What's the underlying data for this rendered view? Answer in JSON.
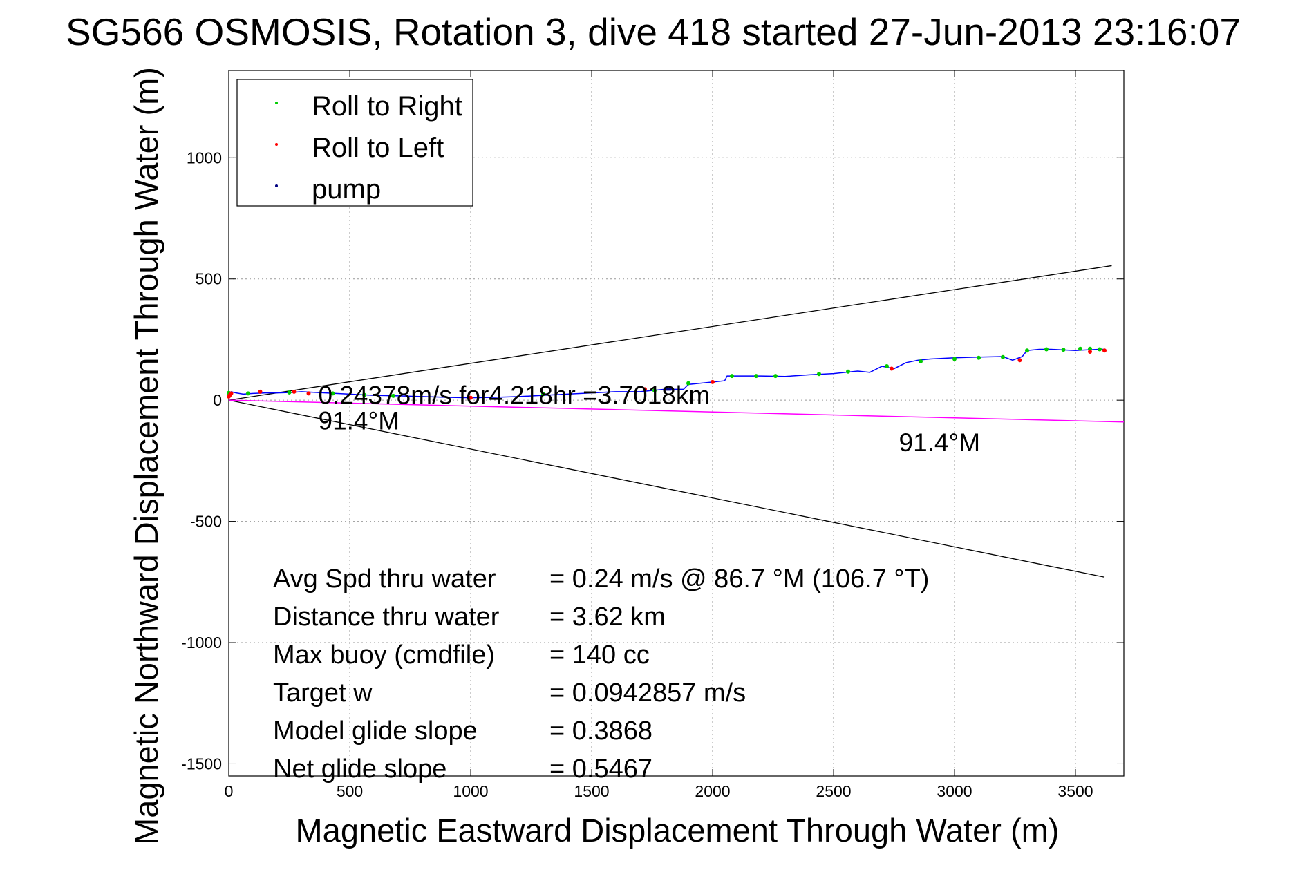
{
  "chart_data": {
    "type": "scatter",
    "title": "SG566 OSMOSIS, Rotation 3, dive 418 started 27-Jun-2013 23:16:07",
    "xlabel": "Magnetic Eastward Displacement Through Water (m)",
    "ylabel": "Magnetic Northward Displacement Through Water (m)",
    "xlim": [
      0,
      3700
    ],
    "ylim": [
      -1550,
      1360
    ],
    "xticks": [
      0,
      500,
      1000,
      1500,
      2000,
      2500,
      3000,
      3500
    ],
    "yticks": [
      -1500,
      -1000,
      -500,
      0,
      500,
      1000
    ],
    "grid": true,
    "legend": {
      "placement": "top-left",
      "entries": [
        "Roll to Right",
        "Roll to Left",
        "pump"
      ]
    },
    "colors": {
      "track": "#0000ff",
      "roll_right": "#00cc00",
      "roll_left": "#ff0000",
      "pump": "#000080",
      "heading": "#ff00ff",
      "cone": "#000000"
    },
    "series": [
      {
        "name": "track",
        "x": [
          0,
          10,
          30,
          60,
          100,
          150,
          200,
          260,
          300,
          400,
          500,
          600,
          700,
          800,
          900,
          1000,
          1100,
          1200,
          1300,
          1400,
          1500,
          1600,
          1700,
          1750,
          1800,
          1850,
          1880,
          1900,
          1950,
          2000,
          2050,
          2060,
          2100,
          2200,
          2300,
          2400,
          2500,
          2600,
          2650,
          2700,
          2750,
          2800,
          2850,
          2900,
          3000,
          3100,
          3200,
          3240,
          3280,
          3300,
          3350,
          3400,
          3500,
          3550,
          3600,
          3620
        ],
        "y": [
          30,
          35,
          30,
          25,
          28,
          30,
          30,
          32,
          35,
          30,
          25,
          20,
          18,
          15,
          12,
          10,
          12,
          15,
          20,
          25,
          30,
          35,
          35,
          40,
          45,
          45,
          45,
          65,
          70,
          75,
          80,
          100,
          100,
          100,
          98,
          105,
          110,
          120,
          115,
          140,
          130,
          155,
          165,
          170,
          175,
          178,
          180,
          165,
          180,
          205,
          210,
          210,
          205,
          208,
          210,
          210
        ]
      },
      {
        "name": "Roll to Right",
        "x": [
          0,
          80,
          250,
          430,
          560,
          680,
          1300,
          1760,
          1900,
          2080,
          2180,
          2260,
          2440,
          2560,
          2720,
          2860,
          3000,
          3100,
          3200,
          3300,
          3380,
          3450,
          3520,
          3560,
          3600
        ],
        "y": [
          30,
          28,
          32,
          28,
          22,
          18,
          25,
          40,
          70,
          100,
          100,
          100,
          108,
          118,
          140,
          160,
          170,
          175,
          178,
          205,
          210,
          208,
          212,
          212,
          210
        ]
      },
      {
        "name": "Roll to Left",
        "x": [
          0,
          5,
          10,
          130,
          270,
          330,
          1000,
          1720,
          2000,
          2740,
          3270,
          3560,
          3620
        ],
        "y": [
          15,
          22,
          28,
          35,
          35,
          28,
          10,
          45,
          75,
          130,
          165,
          200,
          205
        ]
      },
      {
        "name": "pump",
        "x": [
          1800,
          1830
        ],
        "y": [
          45,
          45
        ]
      },
      {
        "name": "heading",
        "x": [
          0,
          3700
        ],
        "y": [
          0,
          -90
        ]
      },
      {
        "name": "cone-upper",
        "x": [
          0,
          3650
        ],
        "y": [
          0,
          555
        ]
      },
      {
        "name": "cone-lower",
        "x": [
          0,
          3620
        ],
        "y": [
          0,
          -730
        ]
      }
    ],
    "annotations": [
      {
        "text": "0.24378m/s for4.218hr =3.7018km",
        "x": 370,
        "y": -15
      },
      {
        "text": "91.4°M",
        "x": 370,
        "y": -120
      },
      {
        "text": "91.4°M",
        "x": 2770,
        "y": -210
      }
    ],
    "stats": [
      {
        "label": "Avg Spd thru water",
        "value": "=  0.24 m/s @  86.7 °M (106.7 °T)"
      },
      {
        "label": "Distance thru water",
        "value": "=  3.62 km"
      },
      {
        "label": "Max buoy (cmdfile)",
        "value": "= 140 cc"
      },
      {
        "label": "Target w",
        "value": "= 0.0942857 m/s"
      },
      {
        "label": "Model glide slope",
        "value": "= 0.3868"
      },
      {
        "label": "Net glide slope",
        "value": "= 0.5467"
      }
    ]
  }
}
